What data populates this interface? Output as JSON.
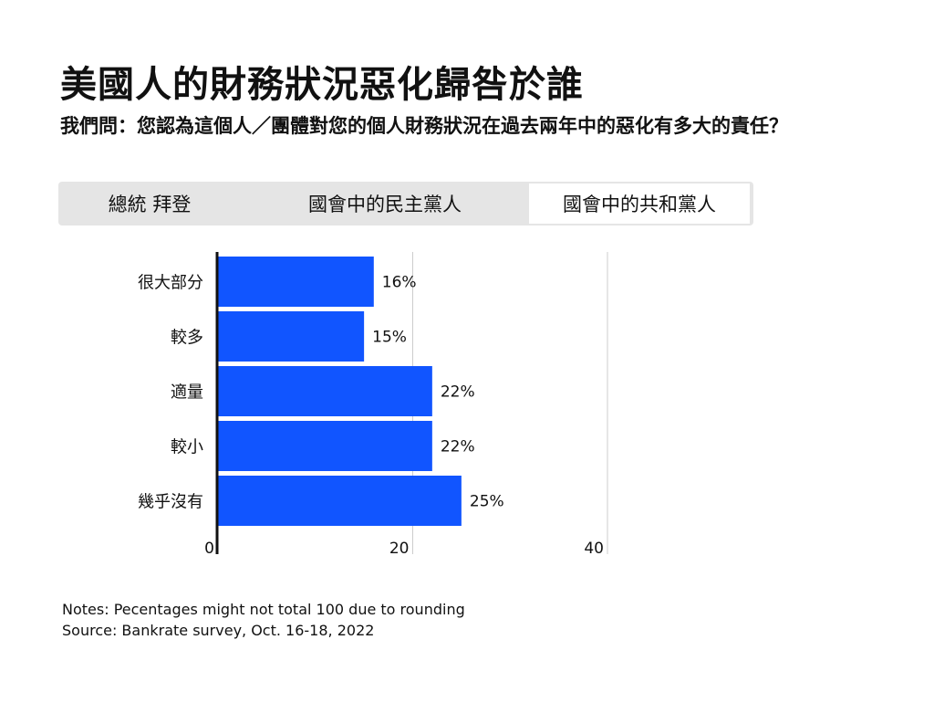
{
  "header": {
    "title": "美國人的財務狀況惡化歸咎於誰",
    "subtitle": "我們問：您認為這個人／團體對您的個人財務狀況在過去兩年中的惡化有多大的責任？"
  },
  "tabs": [
    {
      "label": "總統 拜登",
      "selected": false
    },
    {
      "label": "國會中的民主黨人",
      "selected": false
    },
    {
      "label": "國會中的共和黨人",
      "selected": true
    }
  ],
  "colors": {
    "bar": "#1155ff",
    "axis": "#111111",
    "grid": "#cccccc",
    "tab_bg": "#e5e5e5",
    "tab_selected_bg": "#ffffff"
  },
  "chart_data": {
    "type": "bar",
    "orientation": "horizontal",
    "categories": [
      "很大部分",
      "較多",
      "適量",
      "較小",
      "幾乎沒有"
    ],
    "values": [
      16,
      15,
      22,
      22,
      25
    ],
    "value_labels": [
      "16%",
      "15%",
      "22%",
      "22%",
      "25%"
    ],
    "xlim": [
      0,
      40
    ],
    "xticks": [
      "0",
      "20",
      "40"
    ],
    "grid": true
  },
  "footer": {
    "notes": "Notes: Pecentages might not total 100 due to rounding",
    "source": "Source: Bankrate survey, Oct. 16-18, 2022"
  }
}
